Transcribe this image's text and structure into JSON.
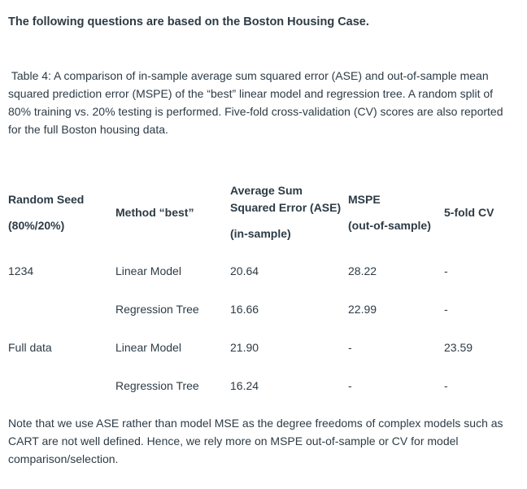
{
  "intro": {
    "heading": "The following questions are based on the Boston Housing Case."
  },
  "table": {
    "caption": " Table 4: A comparison of in-sample average sum squared error (ASE) and out-of-sample mean squared prediction error (MSPE) of the “best” linear model and regression tree. A random split of 80% training vs. 20% testing is performed. Five-fold cross-validation (CV) scores are also reported for the full Boston housing data.",
    "header": {
      "col1": {
        "line1": "Random Seed",
        "line2": "(80%/20%)"
      },
      "col2": {
        "line1": "Method “best”"
      },
      "col3": {
        "line1": "Average Sum Squared Error (ASE)",
        "line2": "(in-sample)"
      },
      "col4": {
        "line1": "MSPE",
        "line2": "(out-of-sample)"
      },
      "col5": {
        "line1": "5-fold CV"
      }
    },
    "rows": [
      {
        "seed": "1234",
        "method": "Linear Model",
        "ase": "20.64",
        "mspe": "28.22",
        "cv": "-"
      },
      {
        "seed": "",
        "method": "Regression Tree",
        "ase": "16.66",
        "mspe": "22.99",
        "cv": "-"
      },
      {
        "seed": "Full data",
        "method": "Linear Model",
        "ase": "21.90",
        "mspe": "-",
        "cv": "23.59"
      },
      {
        "seed": "",
        "method": "Regression Tree",
        "ase": "16.24",
        "mspe": "-",
        "cv": "-"
      }
    ]
  },
  "note": "Note that we use ASE rather than model MSE as the degree freedoms of complex models such as CART are not well defined. Hence, we rely more on MSPE out-of-sample or CV for model comparison/selection.",
  "colors": {
    "text": "#2D3B45",
    "background": "#FFFFFF"
  }
}
